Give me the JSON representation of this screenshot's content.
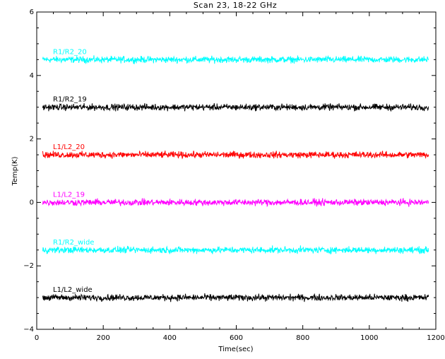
{
  "chart_data": {
    "type": "line",
    "title": "Scan 23, 18-22 GHz",
    "xlabel": "Time(sec)",
    "ylabel": "Temp(K)",
    "xlim": [
      0,
      1200
    ],
    "ylim": [
      -4,
      6
    ],
    "x_ticks": [
      0,
      200,
      400,
      600,
      800,
      1000,
      1200
    ],
    "y_ticks": [
      -4,
      -2,
      0,
      2,
      4,
      6
    ],
    "x_range": [
      18,
      1178
    ],
    "noise_amplitude_k": 0.05,
    "grid": false,
    "legend": "inline labels above each series",
    "series": [
      {
        "name": "R1/R2_20",
        "level": 4.5,
        "color": "#00ffff"
      },
      {
        "name": "R1/R2_19",
        "level": 3.0,
        "color": "#000000"
      },
      {
        "name": "L1/L2_20",
        "level": 1.5,
        "color": "#ff0000"
      },
      {
        "name": "L1/L2_19",
        "level": 0.0,
        "color": "#ff00ff"
      },
      {
        "name": "R1/R2_wide",
        "level": -1.5,
        "color": "#00ffff"
      },
      {
        "name": "L1/L2_wide",
        "level": -3.0,
        "color": "#000000"
      }
    ]
  }
}
